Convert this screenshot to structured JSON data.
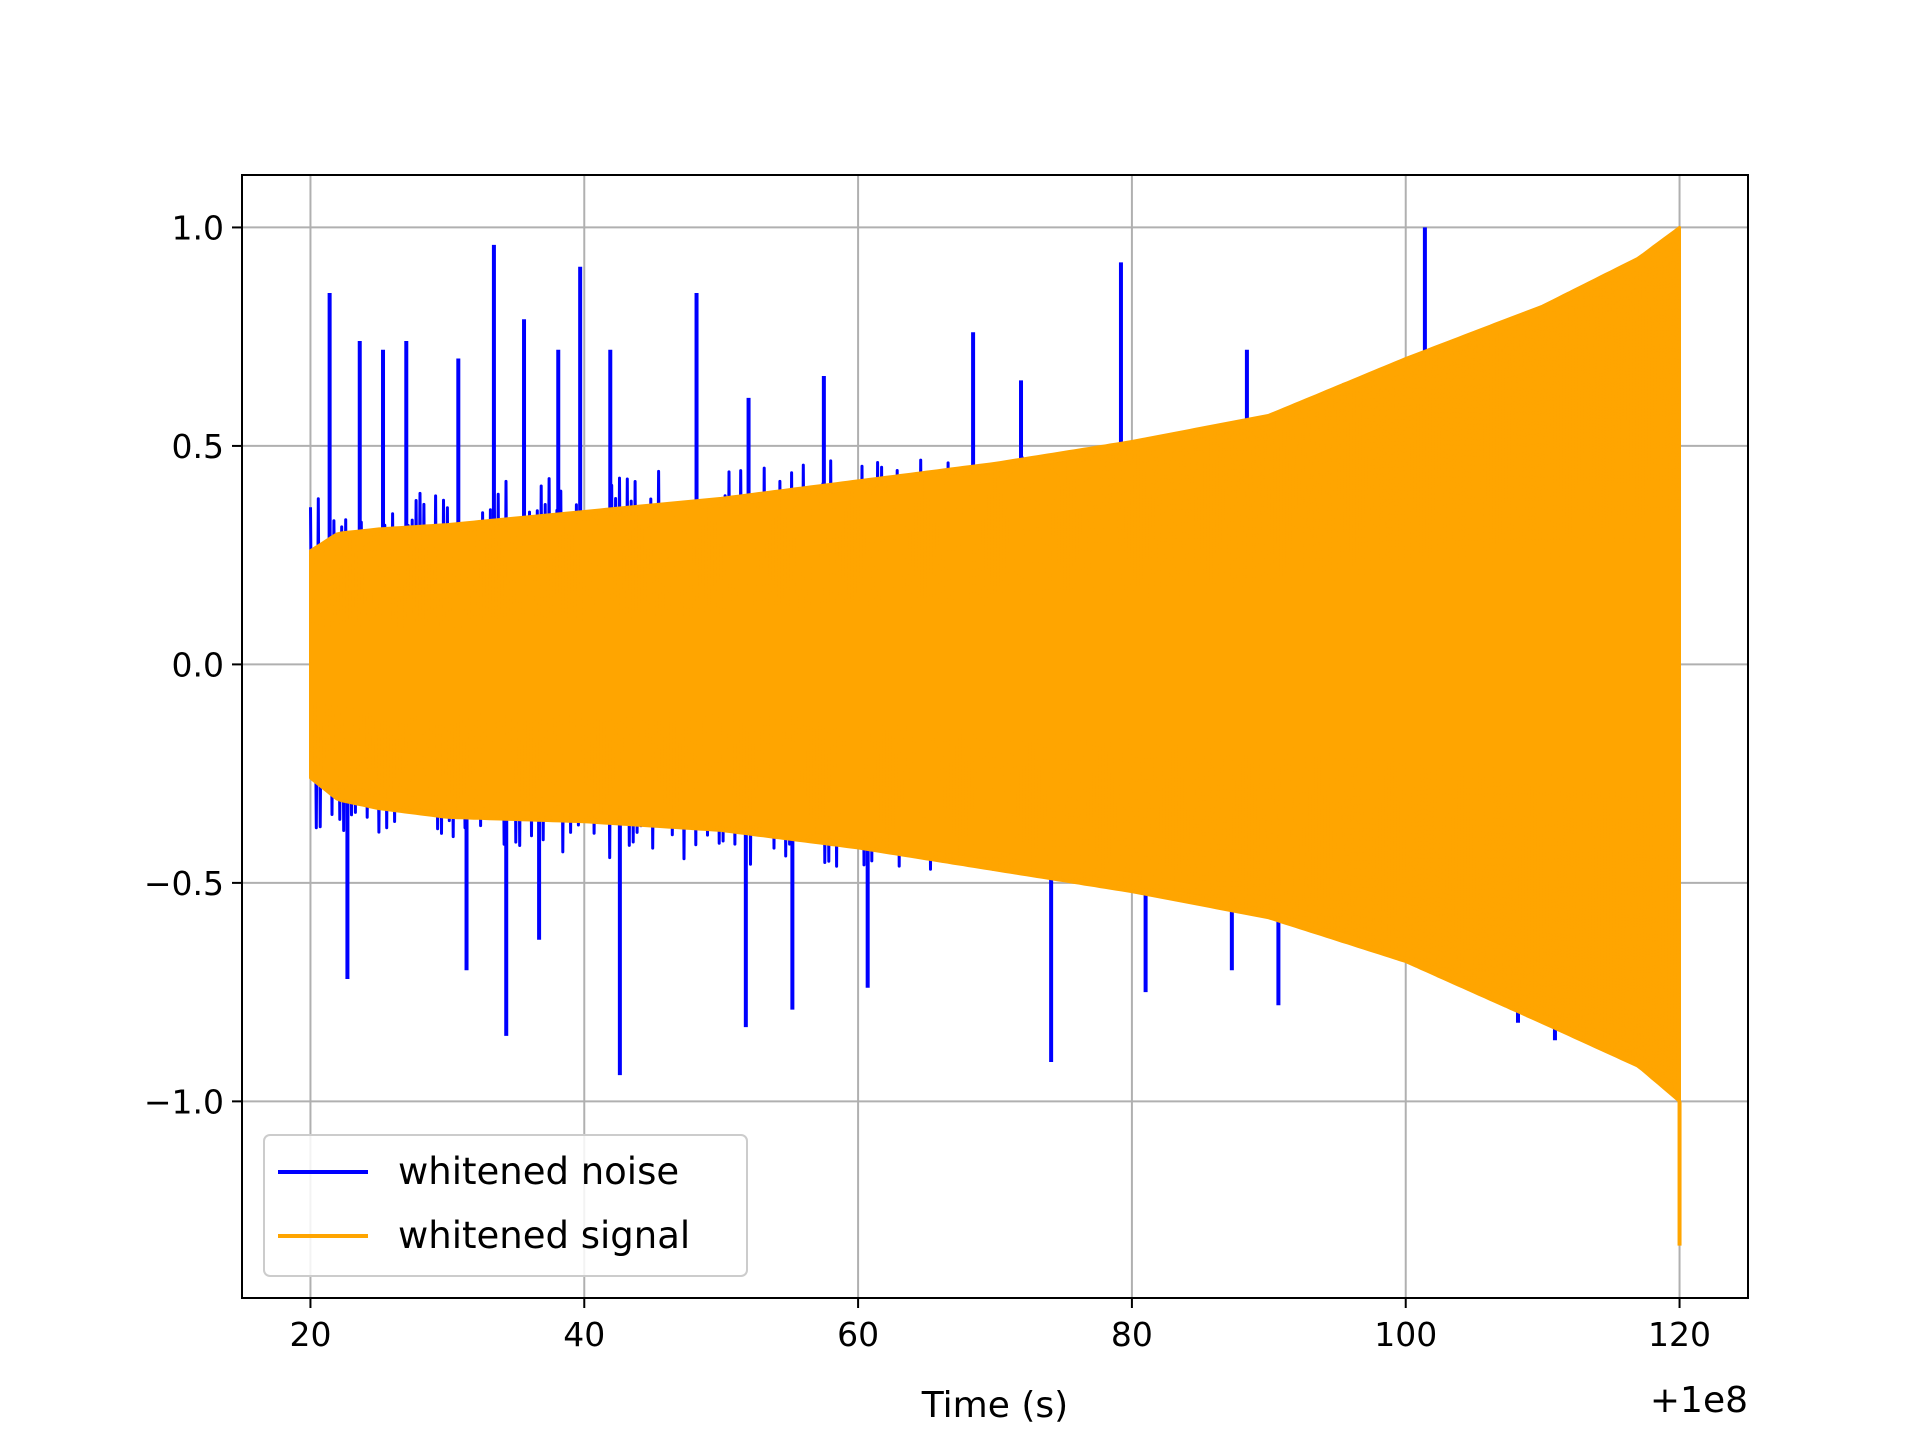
{
  "chart_data": {
    "type": "line",
    "title": "",
    "xlabel": "Time (s)",
    "ylabel": "",
    "x_offset_label": "+1e8",
    "xlim": [
      15,
      125
    ],
    "ylim": [
      -1.45,
      1.12
    ],
    "x_ticks": [
      20,
      40,
      60,
      80,
      100,
      120
    ],
    "x_tick_labels": [
      "20",
      "40",
      "60",
      "80",
      "100",
      "120"
    ],
    "y_ticks": [
      -1.0,
      -0.5,
      0.0,
      0.5,
      1.0
    ],
    "y_tick_labels": [
      "−1.0",
      "−0.5",
      "0.0",
      "0.5",
      "1.0"
    ],
    "grid": true,
    "legend_position": "lower-left",
    "series": [
      {
        "name": "whitened noise",
        "color": "#0000ff",
        "x_range": [
          20,
          120
        ],
        "envelope_upper": [
          [
            20,
            0.38
          ],
          [
            40,
            0.44
          ],
          [
            60,
            0.47
          ],
          [
            80,
            0.5
          ],
          [
            100,
            0.58
          ],
          [
            120,
            0.62
          ]
        ],
        "envelope_lower": [
          [
            20,
            -0.38
          ],
          [
            40,
            -0.44
          ],
          [
            60,
            -0.47
          ],
          [
            80,
            -0.5
          ],
          [
            100,
            -0.58
          ],
          [
            120,
            -0.62
          ]
        ],
        "peaks": [
          {
            "x": 21.4,
            "y": 0.85
          },
          {
            "x": 23.6,
            "y": 0.74
          },
          {
            "x": 25.3,
            "y": 0.72
          },
          {
            "x": 27.0,
            "y": 0.74
          },
          {
            "x": 30.8,
            "y": 0.7
          },
          {
            "x": 33.4,
            "y": 0.96
          },
          {
            "x": 35.6,
            "y": 0.79
          },
          {
            "x": 38.1,
            "y": 0.72
          },
          {
            "x": 39.7,
            "y": 0.91
          },
          {
            "x": 41.9,
            "y": 0.72
          },
          {
            "x": 48.2,
            "y": 0.85
          },
          {
            "x": 52.0,
            "y": 0.61
          },
          {
            "x": 57.5,
            "y": 0.66
          },
          {
            "x": 68.4,
            "y": 0.76
          },
          {
            "x": 71.9,
            "y": 0.65
          },
          {
            "x": 79.2,
            "y": 0.92
          },
          {
            "x": 88.4,
            "y": 0.72
          },
          {
            "x": 101.4,
            "y": 1.0
          },
          {
            "x": 104.9,
            "y": 0.71
          },
          {
            "x": 22.7,
            "y": -0.72
          },
          {
            "x": 31.4,
            "y": -0.7
          },
          {
            "x": 34.3,
            "y": -0.85
          },
          {
            "x": 36.7,
            "y": -0.63
          },
          {
            "x": 42.6,
            "y": -0.94
          },
          {
            "x": 51.8,
            "y": -0.83
          },
          {
            "x": 55.2,
            "y": -0.79
          },
          {
            "x": 60.7,
            "y": -0.74
          },
          {
            "x": 74.1,
            "y": -0.91
          },
          {
            "x": 81.0,
            "y": -0.75
          },
          {
            "x": 87.3,
            "y": -0.7
          },
          {
            "x": 90.7,
            "y": -0.78
          },
          {
            "x": 104.3,
            "y": -0.73
          },
          {
            "x": 108.2,
            "y": -0.82
          },
          {
            "x": 110.9,
            "y": -0.86
          }
        ]
      },
      {
        "name": "whitened signal",
        "color": "#ffa500",
        "x_range": [
          20,
          120
        ],
        "envelope_upper": [
          [
            20,
            0.26
          ],
          [
            22,
            0.3
          ],
          [
            25,
            0.31
          ],
          [
            30,
            0.32
          ],
          [
            40,
            0.35
          ],
          [
            50,
            0.38
          ],
          [
            60,
            0.42
          ],
          [
            70,
            0.46
          ],
          [
            80,
            0.51
          ],
          [
            90,
            0.57
          ],
          [
            100,
            0.7
          ],
          [
            110,
            0.82
          ],
          [
            117,
            0.93
          ],
          [
            120,
            1.0
          ]
        ],
        "envelope_lower": [
          [
            20,
            -0.26
          ],
          [
            22,
            -0.31
          ],
          [
            25,
            -0.33
          ],
          [
            30,
            -0.35
          ],
          [
            40,
            -0.36
          ],
          [
            50,
            -0.38
          ],
          [
            60,
            -0.42
          ],
          [
            70,
            -0.47
          ],
          [
            80,
            -0.52
          ],
          [
            90,
            -0.58
          ],
          [
            100,
            -0.68
          ],
          [
            110,
            -0.82
          ],
          [
            117,
            -0.92
          ],
          [
            120,
            -1.0
          ]
        ],
        "end_spike": {
          "x": 120.0,
          "y": -1.33
        }
      }
    ]
  }
}
